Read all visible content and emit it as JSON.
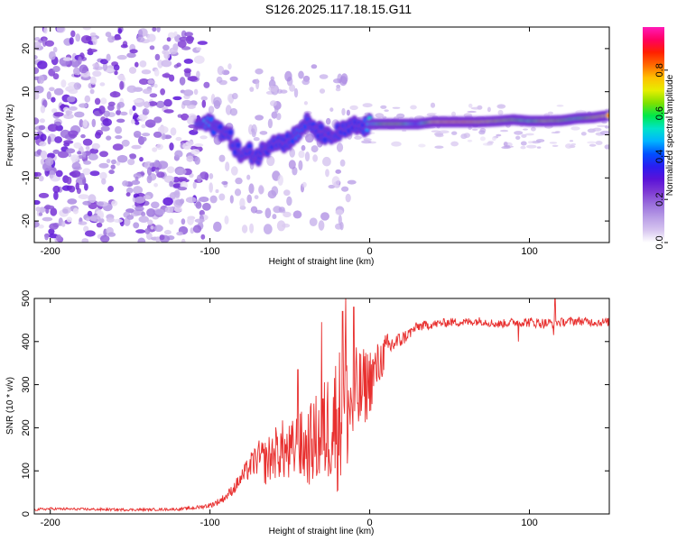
{
  "title": "S126.2025.117.18.15.G11",
  "chart_data": [
    {
      "type": "heatmap",
      "xlabel": "Height of straight line (km)",
      "ylabel": "Frequency (Hz)",
      "xlim": [
        -210,
        150
      ],
      "ylim": [
        -25,
        25
      ],
      "xticks": [
        -200,
        -100,
        0,
        100
      ],
      "xtick_labels": [
        "-200",
        "-100",
        "0",
        "100"
      ],
      "yticks": [
        -20,
        -10,
        0,
        10,
        20
      ],
      "ytick_labels": [
        "-20",
        "-10",
        "0",
        "10",
        "20"
      ],
      "colorbar": {
        "label": "Normalized spectral amplitude",
        "range": [
          0.0,
          1.0
        ],
        "ticks": [
          0.0,
          0.2,
          0.4,
          0.6,
          0.8
        ],
        "tick_labels": [
          "0.0",
          "0.2",
          "0.4",
          "0.6",
          "0.8"
        ],
        "colormap": [
          "#ffffff",
          "#d6c4ef",
          "#b89de6",
          "#9a6fdc",
          "#7e3ad4",
          "#5a12d8",
          "#2a1df0",
          "#0050ff",
          "#00b4ff",
          "#00e4c8",
          "#00e84a",
          "#7ee000",
          "#e6ee00",
          "#ffc000",
          "#ff6a00",
          "#ff2000",
          "#ff0060",
          "#ff1ab8"
        ]
      },
      "signal_track": {
        "x": [
          -108,
          -100,
          -95,
          -90,
          -85,
          -80,
          -75,
          -70,
          -65,
          -60,
          -55,
          -50,
          -45,
          -40,
          -35,
          -30,
          -25,
          -20,
          -15,
          -10,
          -5,
          0,
          10,
          20,
          30,
          40,
          50,
          60,
          70,
          80,
          90,
          100,
          110,
          120,
          130,
          140,
          150
        ],
        "y": [
          2.5,
          2.5,
          1.5,
          0.5,
          -2,
          -5,
          -4,
          -5,
          -3,
          -1,
          -2,
          -1,
          0,
          3,
          1,
          0.5,
          -1,
          0.5,
          1,
          2,
          1.5,
          2.5,
          2.5,
          2.5,
          2.5,
          3,
          3,
          3,
          3,
          3.2,
          3.5,
          3.2,
          3.2,
          3.3,
          3.8,
          4.0,
          4.5
        ],
        "amplitude": [
          0.55,
          0.45,
          0.35,
          0.3,
          0.35,
          0.3,
          0.35,
          0.3,
          0.3,
          0.35,
          0.3,
          0.35,
          0.45,
          0.4,
          0.35,
          0.3,
          0.35,
          0.3,
          0.35,
          0.3,
          0.3,
          0.55,
          0.8,
          0.8,
          0.5,
          0.9,
          0.95,
          0.95,
          0.9,
          0.85,
          0.8,
          0.7,
          0.85,
          0.8,
          0.7,
          0.85,
          0.9
        ]
      }
    },
    {
      "type": "line",
      "xlabel": "Height of straight line (km)",
      "ylabel": "SNR (10 * v/v)",
      "xlim": [
        -210,
        150
      ],
      "ylim": [
        0,
        500
      ],
      "xticks": [
        -200,
        -100,
        0,
        100
      ],
      "xtick_labels": [
        "-200",
        "-100",
        "0",
        "100"
      ],
      "yticks": [
        0,
        100,
        200,
        300,
        400,
        500
      ],
      "ytick_labels": [
        "0",
        "100",
        "200",
        "300",
        "400",
        "500"
      ],
      "series": [
        {
          "color": "#e8302f",
          "x": [
            -210,
            -200,
            -180,
            -160,
            -140,
            -120,
            -110,
            -100,
            -95,
            -90,
            -85,
            -80,
            -75,
            -70,
            -65,
            -60,
            -55,
            -50,
            -45,
            -40,
            -35,
            -30,
            -25,
            -20,
            -15,
            -10,
            -5,
            0,
            5,
            10,
            15,
            20,
            25,
            30,
            40,
            50,
            60,
            70,
            80,
            90,
            100,
            110,
            120,
            130,
            140,
            150
          ],
          "values": [
            10,
            12,
            11,
            10,
            10,
            11,
            14,
            20,
            28,
            40,
            60,
            85,
            110,
            130,
            120,
            140,
            150,
            135,
            160,
            150,
            170,
            180,
            210,
            220,
            240,
            260,
            285,
            310,
            340,
            380,
            395,
            405,
            420,
            435,
            440,
            445,
            445,
            448,
            440,
            445,
            445,
            442,
            445,
            448,
            445,
            445
          ],
          "noise_envelope": [
            3,
            3,
            3,
            3,
            3,
            3,
            4,
            6,
            8,
            10,
            14,
            20,
            30,
            40,
            55,
            60,
            70,
            75,
            80,
            90,
            100,
            120,
            140,
            170,
            160,
            130,
            100,
            80,
            60,
            40,
            25,
            18,
            14,
            12,
            10,
            10,
            10,
            10,
            10,
            10,
            12,
            12,
            10,
            10,
            10,
            10
          ],
          "spikes": [
            [
              -15,
              505
            ],
            [
              -17,
              470
            ],
            [
              -30,
              445
            ],
            [
              -45,
              335
            ],
            [
              -10,
              480
            ],
            [
              116,
              498
            ],
            [
              115,
              415
            ],
            [
              93,
              400
            ]
          ]
        }
      ]
    }
  ]
}
